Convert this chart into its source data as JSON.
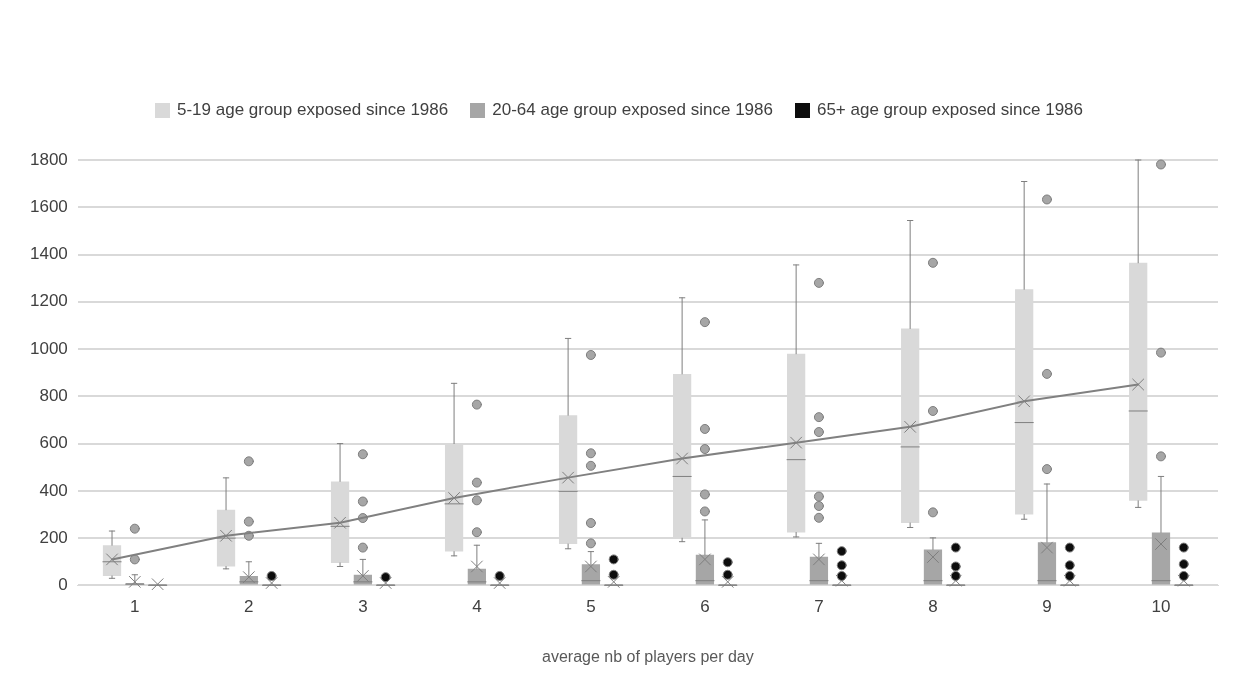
{
  "chart_data": {
    "type": "box",
    "xlabel": "average nb of players per day",
    "categories": [
      "1",
      "2",
      "3",
      "4",
      "5",
      "6",
      "7",
      "8",
      "9",
      "10"
    ],
    "ylim": [
      0,
      1800
    ],
    "yticks": [
      0,
      200,
      400,
      600,
      800,
      1000,
      1200,
      1400,
      1600,
      1800
    ],
    "grid": "y",
    "legend": "top",
    "series": [
      {
        "name": "5-19 age group exposed since 1986",
        "color": "#d9d9d9",
        "boxes": [
          {
            "low": 30,
            "q1": 40,
            "median": 100,
            "q3": 170,
            "high": 230,
            "mean": 110
          },
          {
            "low": 70,
            "q1": 80,
            "median": 200,
            "q3": 320,
            "high": 455,
            "mean": 210
          },
          {
            "low": 80,
            "q1": 95,
            "median": 250,
            "q3": 440,
            "high": 600,
            "mean": 265
          },
          {
            "low": 125,
            "q1": 143,
            "median": 345,
            "q3": 600,
            "high": 855,
            "mean": 370
          },
          {
            "low": 155,
            "q1": 175,
            "median": 398,
            "q3": 720,
            "high": 1045,
            "mean": 456
          },
          {
            "low": 185,
            "q1": 200,
            "median": 461,
            "q3": 895,
            "high": 1217,
            "mean": 537
          },
          {
            "low": 205,
            "q1": 224,
            "median": 532,
            "q3": 980,
            "high": 1356,
            "mean": 604
          },
          {
            "low": 245,
            "q1": 264,
            "median": 586,
            "q3": 1087,
            "high": 1544,
            "mean": 671
          },
          {
            "low": 280,
            "q1": 300,
            "median": 689,
            "q3": 1253,
            "high": 1709,
            "mean": 779
          },
          {
            "low": 330,
            "q1": 358,
            "median": 738,
            "q3": 1365,
            "high": 1800,
            "mean": 850
          }
        ]
      },
      {
        "name": "20-64 age group exposed since 1986",
        "color": "#a6a6a6",
        "boxes": [
          {
            "low": 0,
            "q1": 0,
            "median": 5,
            "q3": 10,
            "high": 45,
            "mean": 15,
            "outliers": [
              110,
              240
            ]
          },
          {
            "low": 0,
            "q1": 0,
            "median": 15,
            "q3": 40,
            "high": 100,
            "mean": 35,
            "outliers": [
              210,
              270,
              525
            ]
          },
          {
            "low": 0,
            "q1": 0,
            "median": 15,
            "q3": 45,
            "high": 110,
            "mean": 40,
            "outliers": [
              160,
              285,
              355,
              555
            ]
          },
          {
            "low": 0,
            "q1": 0,
            "median": 15,
            "q3": 70,
            "high": 170,
            "mean": 80,
            "outliers": [
              225,
              360,
              435,
              765
            ]
          },
          {
            "low": 0,
            "q1": 0,
            "median": 20,
            "q3": 90,
            "high": 143,
            "mean": 80,
            "outliers": [
              178,
              264,
              506,
              559,
              975
            ]
          },
          {
            "low": 0,
            "q1": 0,
            "median": 20,
            "q3": 130,
            "high": 277,
            "mean": 110,
            "outliers": [
              313,
              385,
              577,
              662,
              1114
            ]
          },
          {
            "low": 0,
            "q1": 0,
            "median": 20,
            "q3": 121,
            "high": 178,
            "mean": 110,
            "outliers": [
              286,
              336,
              376,
              649,
              712,
              1280
            ]
          },
          {
            "low": 0,
            "q1": 0,
            "median": 20,
            "q3": 152,
            "high": 201,
            "mean": 120,
            "outliers": [
              309,
              738,
              1365
            ]
          },
          {
            "low": 0,
            "q1": 0,
            "median": 20,
            "q3": 183,
            "high": 429,
            "mean": 160,
            "outliers": [
              492,
              895,
              1633
            ]
          },
          {
            "low": 0,
            "q1": 0,
            "median": 20,
            "q3": 224,
            "high": 461,
            "mean": 175,
            "outliers": [
              546,
              985,
              1781
            ]
          }
        ]
      },
      {
        "name": "65+ age group exposed since 1986",
        "color": "#0d0d0d",
        "boxes": [
          {
            "low": 0,
            "q1": 0,
            "median": 0,
            "q3": 3,
            "high": 3,
            "mean": 5
          },
          {
            "low": 0,
            "q1": 0,
            "median": 0,
            "q3": 5,
            "high": 5,
            "mean": 10,
            "outliers": [
              40
            ]
          },
          {
            "low": 0,
            "q1": 0,
            "median": 0,
            "q3": 5,
            "high": 5,
            "mean": 10,
            "outliers": [
              35
            ]
          },
          {
            "low": 0,
            "q1": 0,
            "median": 0,
            "q3": 5,
            "high": 5,
            "mean": 10,
            "outliers": [
              40
            ]
          },
          {
            "low": 0,
            "q1": 0,
            "median": 0,
            "q3": 5,
            "high": 5,
            "mean": 15,
            "outliers": [
              45,
              110
            ]
          },
          {
            "low": 0,
            "q1": 0,
            "median": 0,
            "q3": 5,
            "high": 5,
            "mean": 15,
            "outliers": [
              45,
              98
            ]
          },
          {
            "low": 0,
            "q1": 0,
            "median": 0,
            "q3": 5,
            "high": 5,
            "mean": 20,
            "outliers": [
              40,
              85,
              145
            ]
          },
          {
            "low": 0,
            "q1": 0,
            "median": 0,
            "q3": 5,
            "high": 5,
            "mean": 20,
            "outliers": [
              40,
              80,
              160
            ]
          },
          {
            "low": 0,
            "q1": 0,
            "median": 0,
            "q3": 5,
            "high": 5,
            "mean": 20,
            "outliers": [
              40,
              85,
              160
            ]
          },
          {
            "low": 0,
            "q1": 0,
            "median": 0,
            "q3": 5,
            "high": 5,
            "mean": 20,
            "outliers": [
              40,
              90,
              160
            ]
          }
        ]
      },
      {
        "type": "line",
        "color": "#808080",
        "values": [
          110,
          210,
          265,
          370,
          456,
          537,
          604,
          671,
          779,
          850
        ]
      }
    ]
  }
}
